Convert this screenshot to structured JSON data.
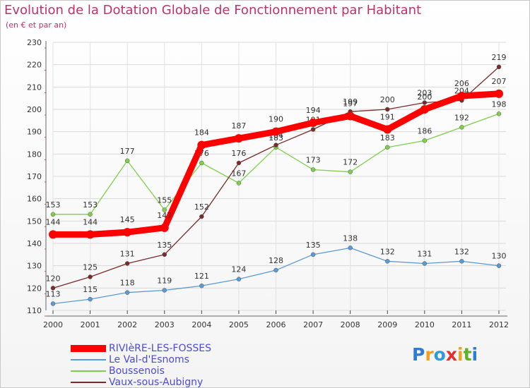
{
  "chart_data": {
    "type": "line",
    "title": "Evolution de la Dotation Globale de Fonctionnement par Habitant",
    "subtitle": "(en € et par an)",
    "xlabel": "",
    "ylabel": "",
    "x": [
      "2000",
      "2001",
      "2002",
      "2003",
      "2004",
      "2005",
      "2006",
      "2007",
      "2008",
      "2009",
      "2010",
      "2011",
      "2012"
    ],
    "ylim": [
      110,
      230
    ],
    "yticks": [
      110,
      120,
      130,
      140,
      150,
      160,
      170,
      180,
      190,
      200,
      210,
      220,
      230
    ],
    "grid": true,
    "legend_position": "bottom-left",
    "series": [
      {
        "name": "RIVIèRE-LES-FOSSES",
        "color": "#ff0000",
        "values": [
          144,
          144,
          145,
          147,
          184,
          187,
          190,
          194,
          197,
          191,
          200,
          206,
          207
        ]
      },
      {
        "name": "Le Val-d'Esnoms",
        "color": "#5b9bd5",
        "values": [
          113,
          115,
          118,
          119,
          121,
          124,
          128,
          135,
          138,
          132,
          131,
          132,
          130
        ]
      },
      {
        "name": "Boussenois",
        "color": "#7ed04a",
        "values": [
          153,
          153,
          177,
          155,
          176,
          167,
          183,
          173,
          172,
          183,
          186,
          192,
          198
        ]
      },
      {
        "name": "Vaux-sous-Aubigny",
        "color": "#7a2a2a",
        "values": [
          120,
          125,
          131,
          135,
          152,
          176,
          184,
          191,
          199,
          200,
          203,
          204,
          219
        ]
      }
    ]
  },
  "logo": {
    "text": "Proxiti",
    "letters": [
      "P",
      "r",
      "o",
      "x",
      "i",
      "t",
      "i"
    ],
    "colors": [
      "#2e7bd6",
      "#f0a020",
      "#2e9bd6",
      "#e03030",
      "#f0a020",
      "#60b030",
      "#2e7bd6"
    ]
  }
}
